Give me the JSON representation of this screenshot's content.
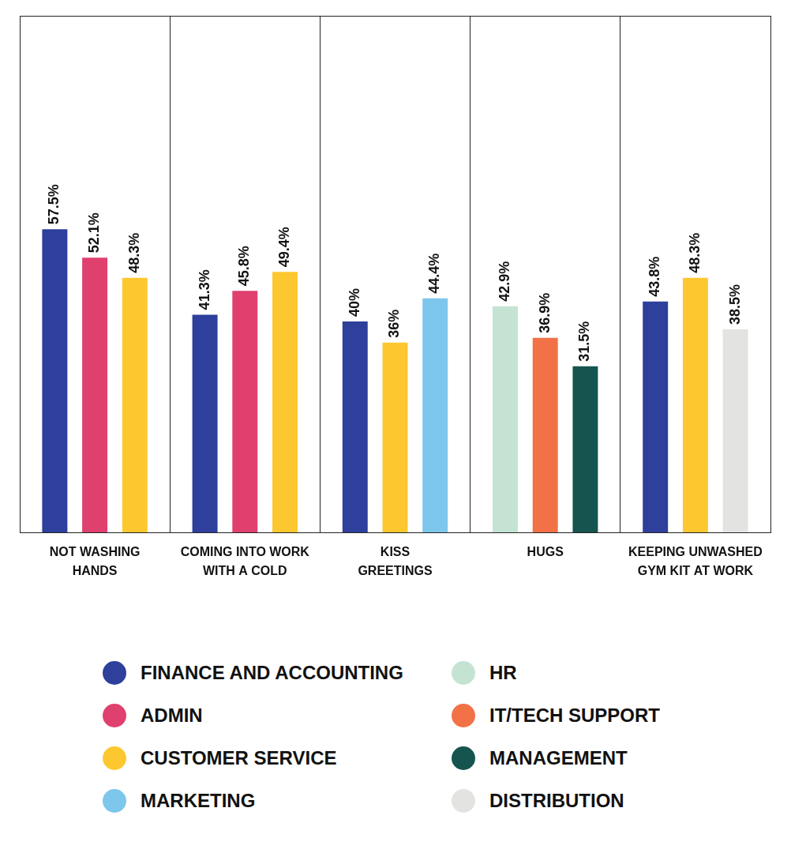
{
  "chart_data": {
    "type": "bar",
    "categories": [
      [
        "NOT WASHING",
        "HANDS"
      ],
      [
        "COMING INTO WORK",
        "WITH A COLD"
      ],
      [
        "KISS",
        "GREETINGS"
      ],
      "HUGS",
      [
        "KEEPING UNWASHED",
        "GYM KIT AT WORK"
      ]
    ],
    "series": [
      {
        "name": "FINANCE AND ACCOUNTING",
        "color": "#2e3f9c",
        "values": [
          57.5,
          41.3,
          40,
          null,
          43.8
        ],
        "value_labels": [
          "57.5%",
          "41.3%",
          "40%",
          null,
          "43.8%"
        ]
      },
      {
        "name": "ADMIN",
        "color": "#e0406e",
        "values": [
          52.1,
          45.8,
          null,
          null,
          null
        ],
        "value_labels": [
          "52.1%",
          "45.8%",
          null,
          null,
          null
        ]
      },
      {
        "name": "CUSTOMER SERVICE",
        "color": "#fdc82f",
        "values": [
          48.3,
          49.4,
          36,
          null,
          48.3
        ],
        "value_labels": [
          "48.3%",
          "49.4%",
          "36%",
          null,
          "48.3%"
        ]
      },
      {
        "name": "MARKETING",
        "color": "#7dc6ec",
        "values": [
          null,
          null,
          44.4,
          null,
          null
        ],
        "value_labels": [
          null,
          null,
          "44.4%",
          null,
          null
        ]
      },
      {
        "name": "HR",
        "color": "#c5e3d3",
        "values": [
          null,
          null,
          null,
          42.9,
          null
        ],
        "value_labels": [
          null,
          null,
          null,
          "42.9%",
          null
        ]
      },
      {
        "name": "IT/TECH SUPPORT",
        "color": "#f27146",
        "values": [
          null,
          null,
          null,
          36.9,
          null
        ],
        "value_labels": [
          null,
          null,
          null,
          "36.9%",
          null
        ]
      },
      {
        "name": "MANAGEMENT",
        "color": "#16544f",
        "values": [
          null,
          null,
          null,
          31.5,
          null
        ],
        "value_labels": [
          null,
          null,
          null,
          "31.5%",
          null
        ]
      },
      {
        "name": "DISTRIBUTION",
        "color": "#e3e4e1",
        "values": [
          null,
          null,
          null,
          null,
          38.5
        ],
        "value_labels": [
          null,
          null,
          null,
          null,
          "38.5%"
        ]
      }
    ],
    "ylim": [
      0,
      98
    ],
    "grid": true,
    "tick_labels": "x",
    "data_labels": true,
    "legend": "bottom"
  }
}
